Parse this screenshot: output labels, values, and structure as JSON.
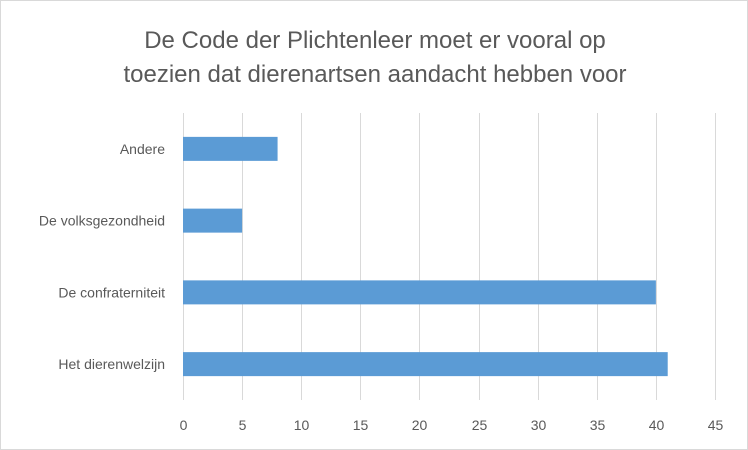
{
  "chart_data": {
    "type": "bar",
    "orientation": "horizontal",
    "title_lines": [
      "De Code der Plichtenleer moet er vooral op",
      "toezien dat dierenartsen aandacht hebben voor"
    ],
    "categories": [
      "Andere",
      "De volksgezondheid",
      "De confraterniteit",
      "Het dierenwelzijn"
    ],
    "values": [
      8,
      5,
      40,
      41
    ],
    "xlim": [
      0,
      45
    ],
    "xticks": [
      "0",
      "5",
      "10",
      "15",
      "20",
      "25",
      "30",
      "35",
      "40",
      "45"
    ],
    "grid": true,
    "legend": "none",
    "bar_color": "#5B9BD5",
    "grid_color": "#D9D9D9"
  }
}
